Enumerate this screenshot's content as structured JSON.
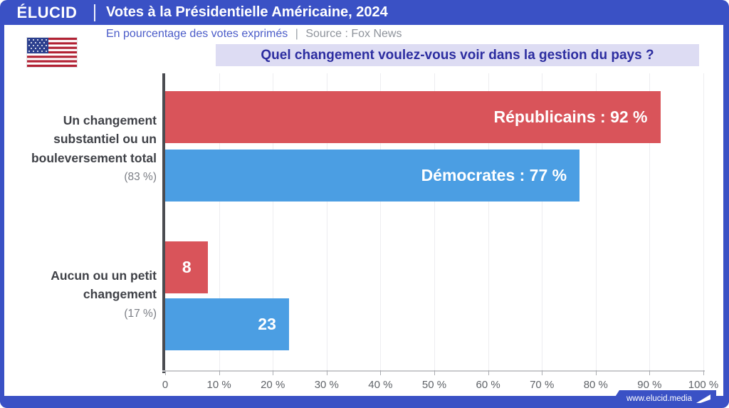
{
  "header": {
    "logo": "ÉLUCID",
    "title": "Votes à la Présidentielle Américaine, 2024"
  },
  "subtitle": {
    "text": "En pourcentage des votes exprimés",
    "separator": "|",
    "source": "Source : Fox News"
  },
  "question": "Quel changement voulez-vous voir dans la gestion du pays ?",
  "footer": {
    "url": "www.elucid.media"
  },
  "colors": {
    "frame_blue": "#3a51c5",
    "question_bg": "#dddcf3",
    "question_text": "#2c2da0",
    "republican_red": "#d9545a",
    "democrat_blue": "#4b9ee3"
  },
  "chart_data": {
    "type": "bar",
    "orientation": "horizontal",
    "categories": [
      "Un changement substantiel ou un bouleversement total",
      "Aucun ou un petit changement"
    ],
    "category_totals": [
      "(83 %)",
      "(17 %)"
    ],
    "series": [
      {
        "name": "Républicains",
        "color": "#d9545a",
        "values": [
          92,
          8
        ]
      },
      {
        "name": "Démocrates",
        "color": "#4b9ee3",
        "values": [
          77,
          23
        ]
      }
    ],
    "bar_labels": [
      [
        "Républicains : 92 %",
        "Démocrates : 77 %"
      ],
      [
        "8",
        "23"
      ]
    ],
    "xlim": [
      0,
      100
    ],
    "x_tick_values": [
      0,
      10,
      20,
      30,
      40,
      50,
      60,
      70,
      80,
      90,
      100
    ],
    "x_ticks": [
      "0",
      "10 %",
      "20 %",
      "30 %",
      "40 %",
      "50 %",
      "60 %",
      "70 %",
      "80 %",
      "90 %",
      "100 %"
    ],
    "grid": true,
    "legend": "none (labels inside bars)"
  }
}
